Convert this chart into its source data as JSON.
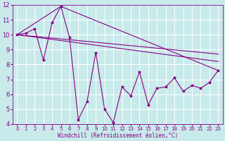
{
  "xlabel": "Windchill (Refroidissement éolien,°C)",
  "bg_color": "#c8eaea",
  "grid_color": "#b8d8d8",
  "line_color": "#880088",
  "xlim": [
    -0.5,
    23.5
  ],
  "ylim": [
    4,
    12
  ],
  "xticks": [
    0,
    1,
    2,
    3,
    4,
    5,
    6,
    7,
    8,
    9,
    10,
    11,
    12,
    13,
    14,
    15,
    16,
    17,
    18,
    19,
    20,
    21,
    22,
    23
  ],
  "yticks": [
    4,
    5,
    6,
    7,
    8,
    9,
    10,
    11,
    12
  ],
  "main_series_x": [
    0,
    1,
    2,
    3,
    4,
    5,
    6,
    7,
    8,
    9,
    10,
    11,
    12,
    13,
    14,
    15,
    16,
    17,
    18,
    19,
    20,
    21,
    22,
    23
  ],
  "main_series_y": [
    10.0,
    10.1,
    10.4,
    8.3,
    10.8,
    11.9,
    9.8,
    4.3,
    5.5,
    8.8,
    5.0,
    4.1,
    6.5,
    5.9,
    7.5,
    5.3,
    6.4,
    6.5,
    7.1,
    6.2,
    6.6,
    6.4,
    6.8,
    7.6
  ],
  "line1_x": [
    0,
    5,
    23
  ],
  "line1_y": [
    10.0,
    11.9,
    7.6
  ],
  "line2_x": [
    0,
    23
  ],
  "line2_y": [
    10.0,
    8.7
  ],
  "line3_x": [
    0,
    23
  ],
  "line3_y": [
    10.0,
    8.2
  ]
}
